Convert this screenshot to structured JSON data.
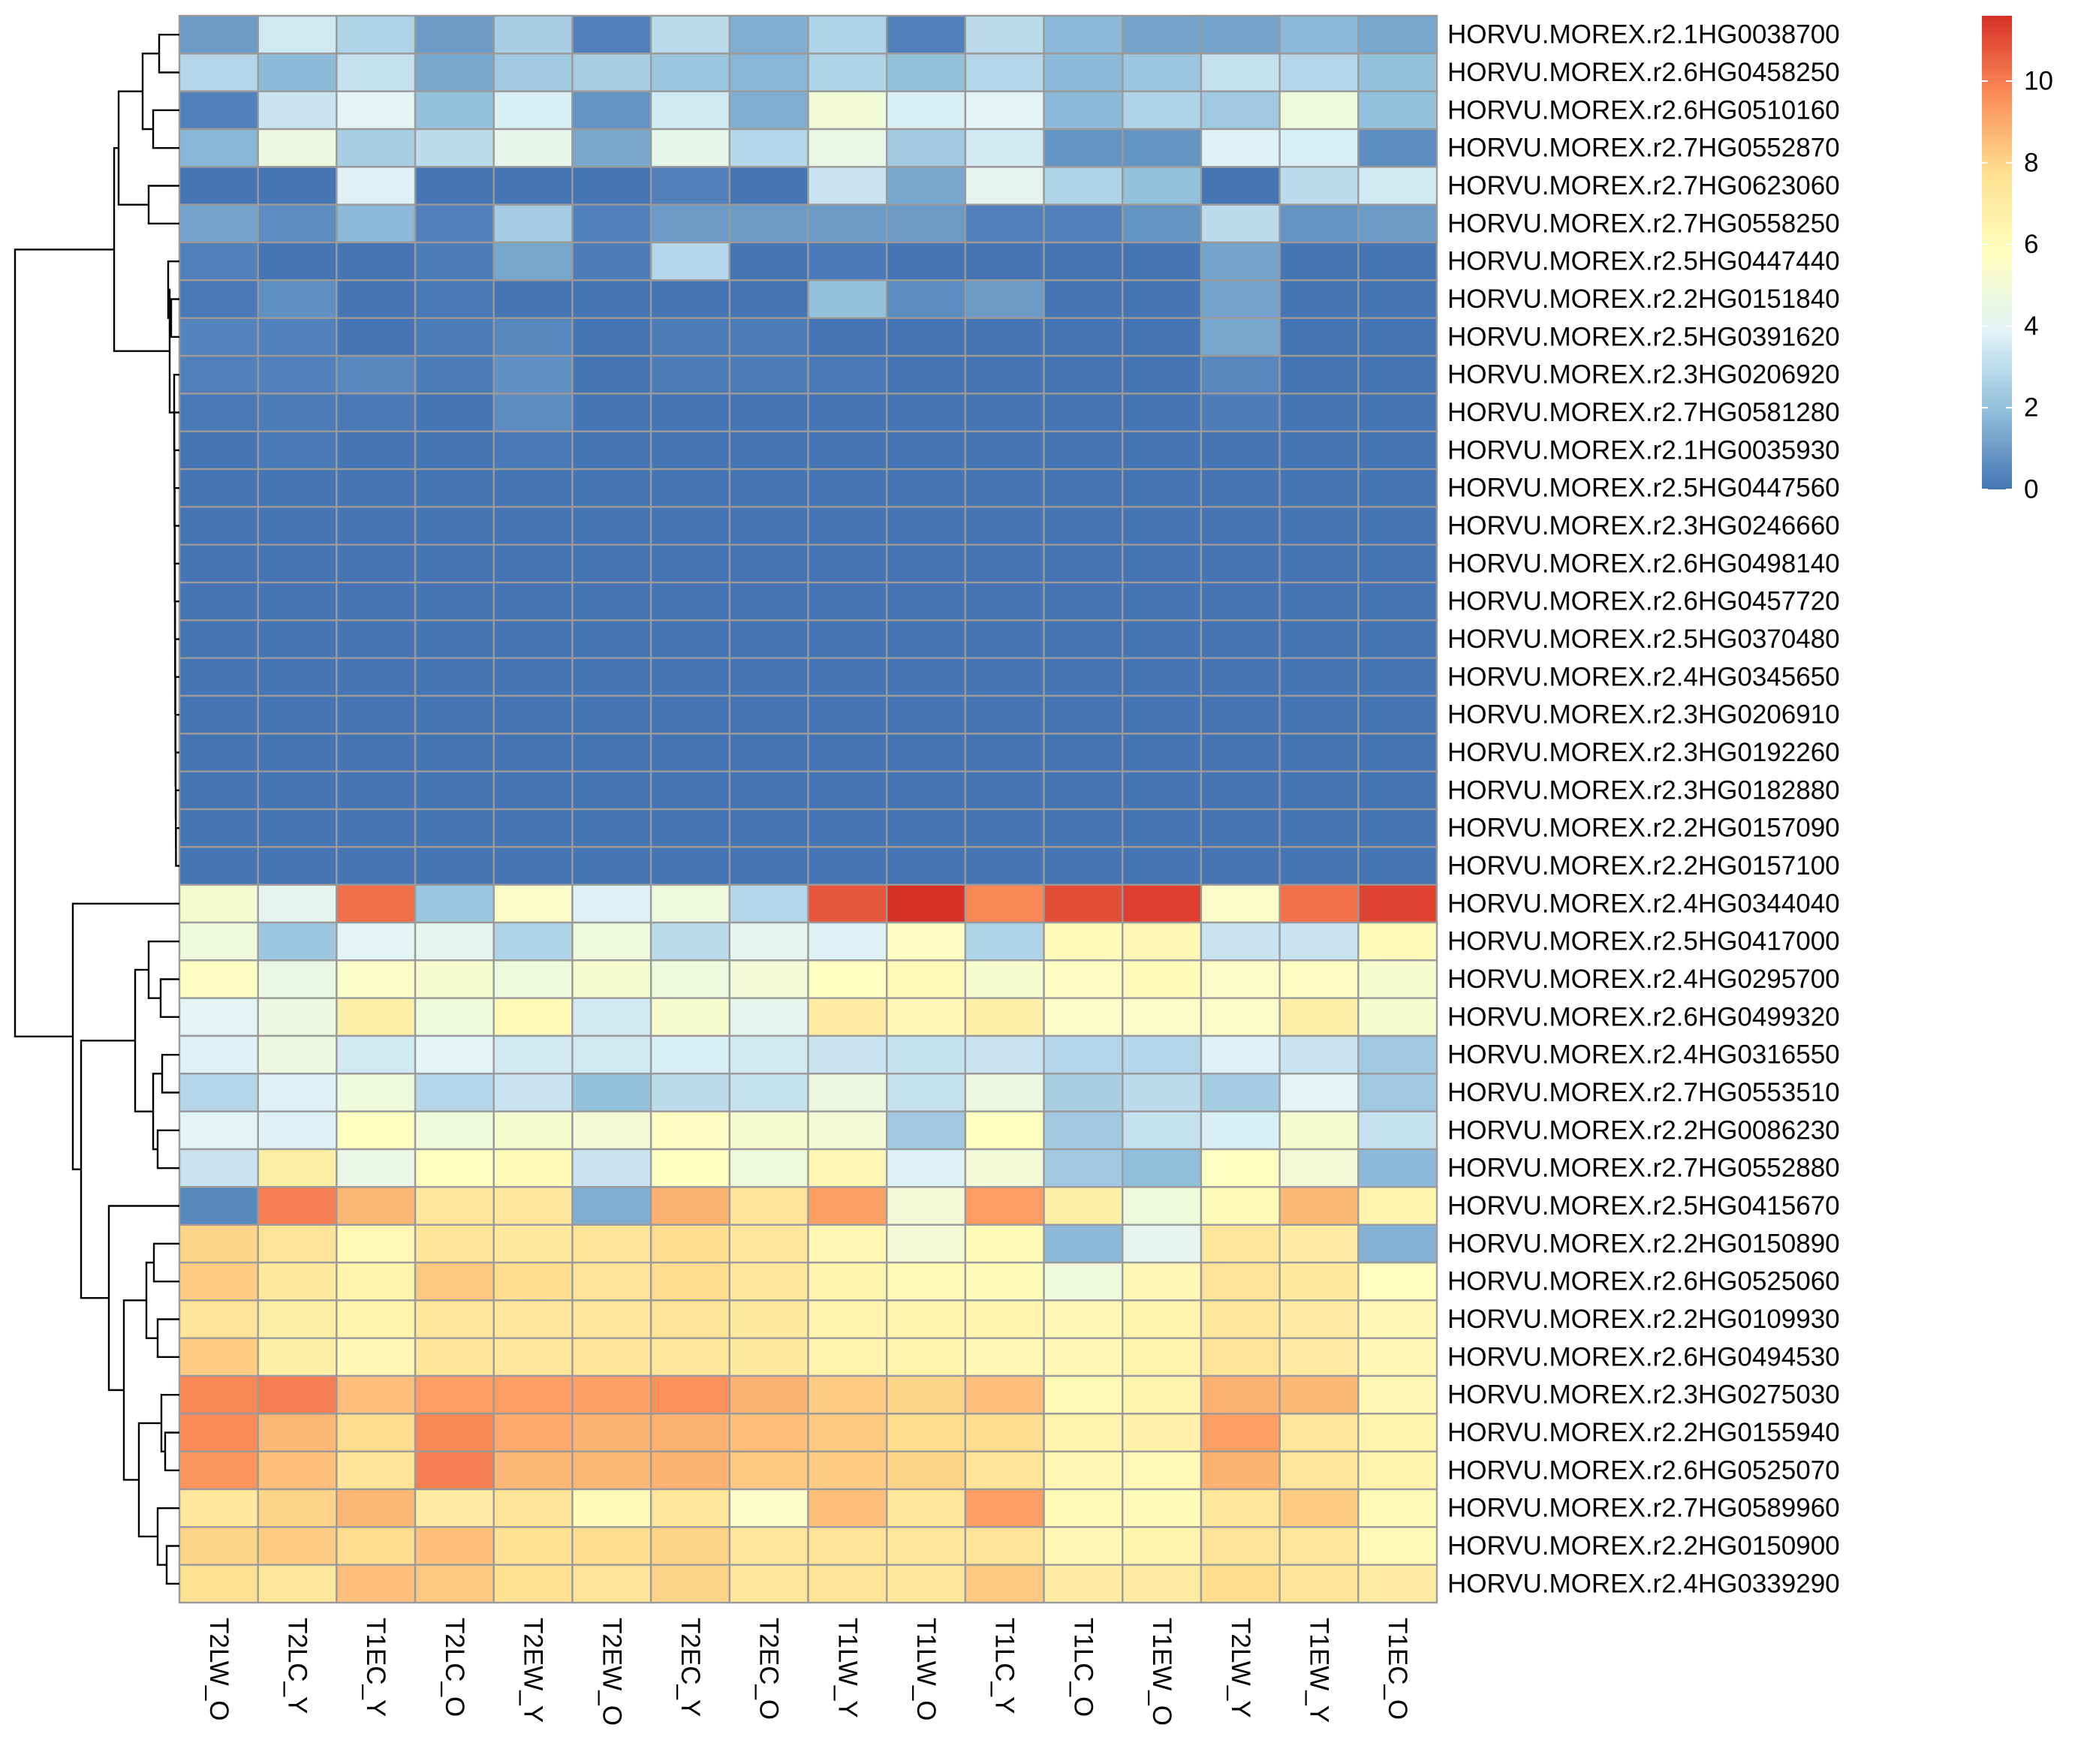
{
  "chart_data": {
    "type": "heatmap",
    "rows": [
      "HORVU.MOREX.r2.1HG0038700",
      "HORVU.MOREX.r2.6HG0458250",
      "HORVU.MOREX.r2.6HG0510160",
      "HORVU.MOREX.r2.7HG0552870",
      "HORVU.MOREX.r2.7HG0623060",
      "HORVU.MOREX.r2.7HG0558250",
      "HORVU.MOREX.r2.5HG0447440",
      "HORVU.MOREX.r2.2HG0151840",
      "HORVU.MOREX.r2.5HG0391620",
      "HORVU.MOREX.r2.3HG0206920",
      "HORVU.MOREX.r2.7HG0581280",
      "HORVU.MOREX.r2.1HG0035930",
      "HORVU.MOREX.r2.5HG0447560",
      "HORVU.MOREX.r2.3HG0246660",
      "HORVU.MOREX.r2.6HG0498140",
      "HORVU.MOREX.r2.6HG0457720",
      "HORVU.MOREX.r2.5HG0370480",
      "HORVU.MOREX.r2.4HG0345650",
      "HORVU.MOREX.r2.3HG0206910",
      "HORVU.MOREX.r2.3HG0192260",
      "HORVU.MOREX.r2.3HG0182880",
      "HORVU.MOREX.r2.2HG0157090",
      "HORVU.MOREX.r2.2HG0157100",
      "HORVU.MOREX.r2.4HG0344040",
      "HORVU.MOREX.r2.5HG0417000",
      "HORVU.MOREX.r2.4HG0295700",
      "HORVU.MOREX.r2.6HG0499320",
      "HORVU.MOREX.r2.4HG0316550",
      "HORVU.MOREX.r2.7HG0553510",
      "HORVU.MOREX.r2.2HG0086230",
      "HORVU.MOREX.r2.7HG0552880",
      "HORVU.MOREX.r2.5HG0415670",
      "HORVU.MOREX.r2.2HG0150890",
      "HORVU.MOREX.r2.6HG0525060",
      "HORVU.MOREX.r2.2HG0109930",
      "HORVU.MOREX.r2.6HG0494530",
      "HORVU.MOREX.r2.3HG0275030",
      "HORVU.MOREX.r2.2HG0155940",
      "HORVU.MOREX.r2.6HG0525070",
      "HORVU.MOREX.r2.7HG0589960",
      "HORVU.MOREX.r2.2HG0150900",
      "HORVU.MOREX.r2.4HG0339290"
    ],
    "columns": [
      "T2LW_O",
      "T2LC_Y",
      "T1EC_Y",
      "T2LC_O",
      "T2EW_Y",
      "T2EW_O",
      "T2EC_Y",
      "T2EC_O",
      "T1LW_Y",
      "T1LW_O",
      "T1LC_Y",
      "T1LC_O",
      "T1EW_O",
      "T2LW_Y",
      "T1EW_Y",
      "T1EC_O"
    ],
    "values": [
      [
        1,
        3.5,
        2.7,
        1,
        2.5,
        0.3,
        3,
        1.5,
        2.7,
        0.3,
        3,
        1.8,
        1.2,
        1.2,
        1.8,
        1.3
      ],
      [
        2.8,
        1.8,
        3.2,
        1.3,
        2.3,
        2.5,
        2.2,
        1.7,
        2.7,
        2,
        2.8,
        1.8,
        2.2,
        3.2,
        2.8,
        2
      ],
      [
        0.3,
        3.3,
        4,
        2,
        3.7,
        0.8,
        3.5,
        1.5,
        5,
        3.7,
        4,
        1.8,
        2.7,
        2.3,
        4.8,
        2
      ],
      [
        1.7,
        4.7,
        2.5,
        3,
        4.3,
        1.3,
        4.3,
        2.8,
        4.5,
        2.3,
        3.5,
        0.8,
        0.8,
        3.8,
        3.7,
        0.6
      ],
      [
        0,
        0,
        3.8,
        0,
        0,
        0,
        0.3,
        0,
        3.3,
        1.3,
        4.2,
        2.7,
        2,
        0,
        3,
        3.5
      ],
      [
        1.2,
        0.6,
        1.8,
        0.3,
        2.4,
        0.3,
        1,
        1,
        1,
        1,
        0.3,
        0.3,
        0.8,
        3,
        0.8,
        1
      ],
      [
        0.3,
        0,
        0,
        0.2,
        1.3,
        0.2,
        2.8,
        0,
        0.1,
        0,
        0,
        0,
        0,
        1.2,
        0,
        0
      ],
      [
        0.1,
        0.7,
        0,
        0.1,
        0,
        0,
        0,
        0,
        2,
        0.6,
        1,
        0,
        0,
        1.2,
        0,
        0
      ],
      [
        0.4,
        0.3,
        0,
        0.2,
        0.5,
        0,
        0.2,
        0.2,
        0,
        0,
        0,
        0,
        0,
        1.3,
        0,
        0
      ],
      [
        0.3,
        0.3,
        0.5,
        0.2,
        0.7,
        0,
        0.2,
        0.2,
        0.1,
        0,
        0,
        0,
        0,
        0.5,
        0,
        0
      ],
      [
        0.1,
        0.2,
        0.1,
        0,
        0.6,
        0,
        0,
        0,
        0,
        0,
        0,
        0,
        0,
        0.2,
        0,
        0
      ],
      [
        0,
        0.1,
        0,
        0,
        0.1,
        0,
        0,
        0,
        0,
        0,
        0,
        0,
        0,
        0,
        0,
        0
      ],
      [
        0,
        0,
        0,
        0,
        0,
        0,
        0,
        0,
        0,
        0,
        0,
        0,
        0,
        0,
        0,
        0
      ],
      [
        0,
        0,
        0,
        0,
        0,
        0,
        0,
        0,
        0,
        0,
        0,
        0,
        0,
        0,
        0,
        0
      ],
      [
        0,
        0,
        0,
        0,
        0,
        0,
        0,
        0,
        0,
        0,
        0,
        0,
        0,
        0,
        0,
        0
      ],
      [
        0,
        0,
        0,
        0,
        0,
        0,
        0,
        0,
        0,
        0,
        0,
        0,
        0,
        0,
        0,
        0
      ],
      [
        0,
        0,
        0,
        0,
        0,
        0,
        0,
        0,
        0,
        0,
        0,
        0,
        0,
        0,
        0,
        0
      ],
      [
        0,
        0,
        0,
        0,
        0,
        0,
        0,
        0,
        0,
        0,
        0,
        0,
        0,
        0,
        0,
        0
      ],
      [
        0,
        0,
        0,
        0,
        0,
        0,
        0,
        0,
        0,
        0,
        0,
        0,
        0,
        0,
        0,
        0
      ],
      [
        0,
        0,
        0,
        0,
        0,
        0,
        0,
        0,
        0,
        0,
        0,
        0,
        0,
        0,
        0,
        0
      ],
      [
        0,
        0,
        0,
        0,
        0,
        0,
        0,
        0,
        0,
        0,
        0,
        0,
        0,
        0,
        0,
        0
      ],
      [
        0,
        0,
        0,
        0,
        0,
        0,
        0,
        0,
        0,
        0,
        0,
        0,
        0,
        0,
        0,
        0
      ],
      [
        0,
        0,
        0,
        0,
        0,
        0,
        0,
        0,
        0,
        0,
        0,
        0,
        0,
        0,
        0,
        0
      ],
      [
        5.2,
        4.2,
        10.3,
        2.2,
        5.5,
        3.8,
        4.8,
        2.8,
        10.8,
        11.6,
        9.8,
        11,
        11.3,
        5.5,
        10.2,
        11.2
      ],
      [
        4.8,
        2.2,
        4,
        4.2,
        2.7,
        4.8,
        3,
        4.2,
        3.8,
        5.7,
        2.7,
        6,
        6.3,
        3.3,
        3.3,
        6
      ],
      [
        5.7,
        4.5,
        5.5,
        5.3,
        4.8,
        5.3,
        4.8,
        5,
        5.8,
        6.2,
        5.3,
        5.7,
        6,
        5.5,
        5.7,
        5.3
      ],
      [
        4,
        4.7,
        6.8,
        4.8,
        6.2,
        3.5,
        5.3,
        4.2,
        7,
        6.3,
        6.8,
        5.5,
        5.5,
        5.5,
        6.8,
        5.3
      ],
      [
        3.8,
        4.7,
        3.5,
        4,
        3.5,
        3.5,
        3.7,
        3.5,
        3.3,
        3.2,
        3.3,
        2.8,
        2.8,
        3.8,
        3.3,
        2.3
      ],
      [
        2.8,
        3.8,
        4.8,
        2.8,
        3.3,
        2,
        3,
        3.2,
        4.7,
        3.2,
        4.7,
        2.5,
        3,
        2.4,
        4,
        2.3
      ],
      [
        4,
        3.8,
        5.8,
        4.8,
        5.3,
        5,
        5.7,
        5.3,
        5,
        2.3,
        5.8,
        2.3,
        3.2,
        3.7,
        5.3,
        3.2
      ],
      [
        3.3,
        6.8,
        4.5,
        5.8,
        6,
        3.3,
        5.8,
        4.8,
        6.3,
        3.8,
        5,
        2.3,
        1.9,
        5.8,
        5,
        1.8
      ],
      [
        0.5,
        10,
        8.7,
        7.3,
        7.3,
        1.5,
        8.8,
        7.5,
        9.2,
        5,
        9.3,
        6.8,
        4.8,
        6,
        8.7,
        6.5
      ],
      [
        8,
        7.5,
        6.2,
        7.5,
        7.2,
        7.5,
        7.8,
        7.3,
        6.3,
        5,
        6,
        1.8,
        4.2,
        7.3,
        7,
        1.6
      ],
      [
        8.2,
        7.2,
        6.5,
        8.3,
        7.8,
        7.5,
        7.8,
        7.3,
        6.5,
        6.2,
        6,
        4.8,
        6.3,
        7.5,
        7.2,
        5.8
      ],
      [
        7.5,
        6.8,
        6.5,
        7.3,
        7.3,
        7.3,
        7.5,
        7.2,
        6.5,
        6.5,
        6.5,
        6.3,
        6.5,
        7.3,
        7,
        6.3
      ],
      [
        8.2,
        6.8,
        6.3,
        7.5,
        7.3,
        7.5,
        7.3,
        7.2,
        6.5,
        6.5,
        6.3,
        6.3,
        6.5,
        7.5,
        7,
        6.3
      ],
      [
        9.8,
        10,
        8.5,
        9.3,
        9.3,
        9.2,
        9.6,
        8.8,
        8.2,
        8,
        8.5,
        6.2,
        6.5,
        8.8,
        8.7,
        6.3
      ],
      [
        9.7,
        8.7,
        7.8,
        9.8,
        9,
        8.8,
        8.8,
        8.5,
        8.3,
        7.8,
        7.8,
        6.5,
        6.7,
        9.3,
        7.3,
        6.5
      ],
      [
        9.5,
        8.5,
        7.5,
        10,
        8.7,
        8.7,
        8.8,
        8.3,
        8.2,
        8,
        7.5,
        6.3,
        6.2,
        8.8,
        7.3,
        6.5
      ],
      [
        7.3,
        8,
        8.7,
        7,
        7.5,
        6.2,
        7.3,
        5.5,
        8.5,
        7.3,
        9.3,
        6.2,
        6,
        7.3,
        8.2,
        6.2
      ],
      [
        8,
        8.2,
        7.8,
        8.5,
        7.7,
        7.8,
        8,
        7.3,
        7.5,
        7.3,
        7.5,
        6.3,
        6.5,
        7.5,
        7.3,
        6.2
      ],
      [
        7.7,
        7.3,
        8.5,
        8.3,
        7.7,
        7.5,
        8,
        7.3,
        7.5,
        7.3,
        8.3,
        7,
        7,
        7.8,
        7.5,
        7
      ]
    ],
    "colorbar": {
      "lim": [
        0,
        11.6
      ],
      "ticks": [
        0,
        2,
        4,
        6,
        8,
        10
      ]
    },
    "colors": [
      "#4575b4",
      "#91bfdb",
      "#e0f3f8",
      "#ffffbf",
      "#fee090",
      "#fc8d59",
      "#d73027"
    ],
    "cell_border": "#9a9a9a"
  }
}
